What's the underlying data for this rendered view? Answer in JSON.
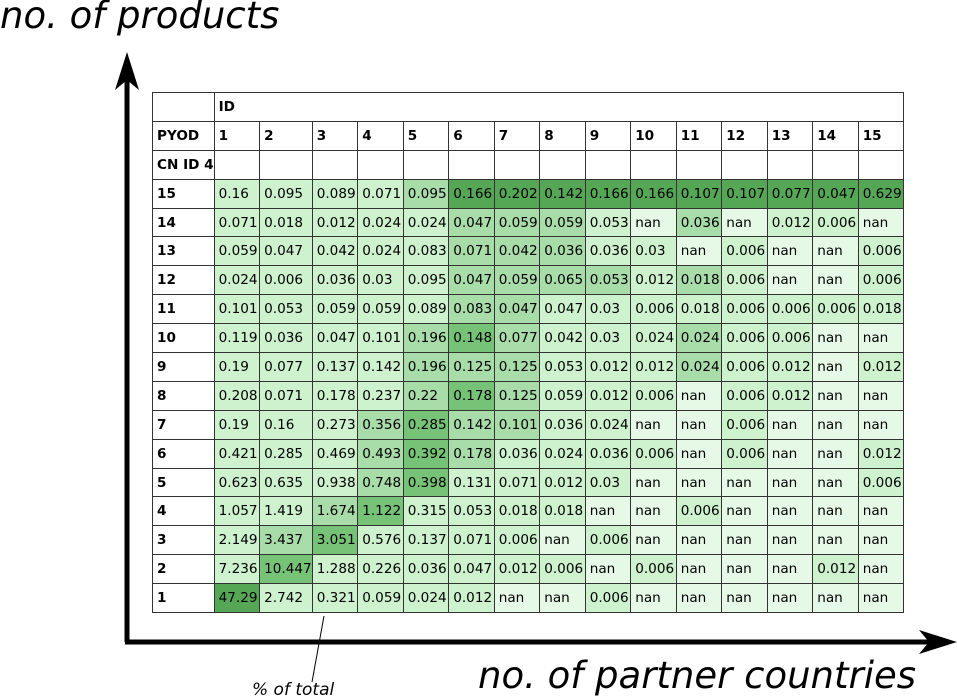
{
  "chart_data": {
    "type": "heatmap",
    "ylabel": "no. of products",
    "xlabel": "no. of partner countries",
    "annotation": "% of total",
    "header": {
      "row1_label": "ID",
      "row2_label": "PYOD",
      "row3_label": "CN ID 4"
    },
    "columns": [
      "1",
      "2",
      "3",
      "4",
      "5",
      "6",
      "7",
      "8",
      "9",
      "10",
      "11",
      "12",
      "13",
      "14",
      "15"
    ],
    "rows": [
      {
        "label": "15",
        "values": [
          "0.16",
          "0.095",
          "0.089",
          "0.071",
          "0.095",
          "0.166",
          "0.202",
          "0.142",
          "0.166",
          "0.166",
          "0.107",
          "0.107",
          "0.077",
          "0.047",
          "0.629"
        ]
      },
      {
        "label": "14",
        "values": [
          "0.071",
          "0.018",
          "0.012",
          "0.024",
          "0.024",
          "0.047",
          "0.059",
          "0.059",
          "0.053",
          "nan",
          "0.036",
          "nan",
          "0.012",
          "0.006",
          "nan"
        ]
      },
      {
        "label": "13",
        "values": [
          "0.059",
          "0.047",
          "0.042",
          "0.024",
          "0.083",
          "0.071",
          "0.042",
          "0.036",
          "0.036",
          "0.03",
          "nan",
          "0.006",
          "nan",
          "nan",
          "0.006"
        ]
      },
      {
        "label": "12",
        "values": [
          "0.024",
          "0.006",
          "0.036",
          "0.03",
          "0.095",
          "0.047",
          "0.059",
          "0.065",
          "0.053",
          "0.012",
          "0.018",
          "0.006",
          "nan",
          "nan",
          "0.006"
        ]
      },
      {
        "label": "11",
        "values": [
          "0.101",
          "0.053",
          "0.059",
          "0.059",
          "0.089",
          "0.083",
          "0.047",
          "0.047",
          "0.03",
          "0.006",
          "0.018",
          "0.006",
          "0.006",
          "0.006",
          "0.018"
        ]
      },
      {
        "label": "10",
        "values": [
          "0.119",
          "0.036",
          "0.047",
          "0.101",
          "0.196",
          "0.148",
          "0.077",
          "0.042",
          "0.03",
          "0.024",
          "0.024",
          "0.006",
          "0.006",
          "nan",
          "nan"
        ]
      },
      {
        "label": "9",
        "values": [
          "0.19",
          "0.077",
          "0.137",
          "0.142",
          "0.196",
          "0.125",
          "0.125",
          "0.053",
          "0.012",
          "0.012",
          "0.024",
          "0.006",
          "0.012",
          "nan",
          "0.012"
        ]
      },
      {
        "label": "8",
        "values": [
          "0.208",
          "0.071",
          "0.178",
          "0.237",
          "0.22",
          "0.178",
          "0.125",
          "0.059",
          "0.012",
          "0.006",
          "nan",
          "0.006",
          "0.012",
          "nan",
          "nan"
        ]
      },
      {
        "label": "7",
        "values": [
          "0.19",
          "0.16",
          "0.273",
          "0.356",
          "0.285",
          "0.142",
          "0.101",
          "0.036",
          "0.024",
          "nan",
          "nan",
          "0.006",
          "nan",
          "nan",
          "nan"
        ]
      },
      {
        "label": "6",
        "values": [
          "0.421",
          "0.285",
          "0.469",
          "0.493",
          "0.392",
          "0.178",
          "0.036",
          "0.024",
          "0.036",
          "0.006",
          "nan",
          "0.006",
          "nan",
          "nan",
          "0.012"
        ]
      },
      {
        "label": "5",
        "values": [
          "0.623",
          "0.635",
          "0.938",
          "0.748",
          "0.398",
          "0.131",
          "0.071",
          "0.012",
          "0.03",
          "nan",
          "nan",
          "nan",
          "nan",
          "nan",
          "0.006"
        ]
      },
      {
        "label": "4",
        "values": [
          "1.057",
          "1.419",
          "1.674",
          "1.122",
          "0.315",
          "0.053",
          "0.018",
          "0.018",
          "nan",
          "nan",
          "0.006",
          "nan",
          "nan",
          "nan",
          "nan"
        ]
      },
      {
        "label": "3",
        "values": [
          "2.149",
          "3.437",
          "3.051",
          "0.576",
          "0.137",
          "0.071",
          "0.006",
          "nan",
          "0.006",
          "nan",
          "nan",
          "nan",
          "nan",
          "nan",
          "nan"
        ]
      },
      {
        "label": "2",
        "values": [
          "7.236",
          "10.447",
          "1.288",
          "0.226",
          "0.036",
          "0.047",
          "0.012",
          "0.006",
          "nan",
          "0.006",
          "nan",
          "nan",
          "nan",
          "0.012",
          "nan"
        ]
      },
      {
        "label": "1",
        "values": [
          "47.29",
          "2.742",
          "0.321",
          "0.059",
          "0.024",
          "0.012",
          "nan",
          "nan",
          "0.006",
          "nan",
          "nan",
          "nan",
          "nan",
          "nan",
          "nan"
        ]
      }
    ],
    "shading": [
      [
        1,
        1,
        1,
        1,
        2,
        4,
        4,
        4,
        4,
        4,
        4,
        4,
        4,
        4,
        4
      ],
      [
        1,
        1,
        1,
        1,
        1,
        2,
        2,
        2,
        1,
        0,
        2,
        0,
        1,
        1,
        0
      ],
      [
        1,
        1,
        1,
        1,
        1,
        2,
        2,
        2,
        1,
        1,
        0,
        1,
        0,
        0,
        1
      ],
      [
        1,
        1,
        1,
        1,
        1,
        2,
        2,
        2,
        2,
        1,
        2,
        1,
        0,
        0,
        1
      ],
      [
        1,
        1,
        1,
        1,
        1,
        2,
        2,
        1,
        1,
        1,
        1,
        1,
        1,
        1,
        1
      ],
      [
        1,
        1,
        1,
        1,
        2,
        3,
        2,
        1,
        1,
        1,
        2,
        1,
        1,
        0,
        0
      ],
      [
        1,
        1,
        1,
        1,
        2,
        2,
        2,
        1,
        1,
        1,
        2,
        1,
        1,
        0,
        1
      ],
      [
        1,
        1,
        1,
        1,
        2,
        3,
        2,
        1,
        1,
        1,
        0,
        1,
        1,
        0,
        0
      ],
      [
        1,
        1,
        1,
        2,
        3,
        2,
        2,
        1,
        1,
        0,
        0,
        1,
        0,
        0,
        0
      ],
      [
        1,
        1,
        1,
        2,
        3,
        2,
        1,
        1,
        1,
        1,
        0,
        1,
        0,
        0,
        1
      ],
      [
        1,
        1,
        1,
        2,
        3,
        1,
        1,
        1,
        1,
        0,
        0,
        0,
        0,
        0,
        1
      ],
      [
        1,
        1,
        2,
        3,
        1,
        1,
        1,
        1,
        0,
        0,
        1,
        0,
        0,
        0,
        0
      ],
      [
        1,
        2,
        3,
        1,
        1,
        1,
        1,
        0,
        1,
        0,
        0,
        0,
        0,
        0,
        0
      ],
      [
        1,
        3,
        1,
        1,
        1,
        1,
        1,
        1,
        0,
        1,
        0,
        0,
        0,
        1,
        0
      ],
      [
        4,
        1,
        1,
        1,
        1,
        1,
        0,
        0,
        1,
        0,
        0,
        0,
        0,
        0,
        0
      ]
    ],
    "palette": [
      "#e6f9e6",
      "#cdf2cd",
      "#a8dca8",
      "#76c276",
      "#55a655"
    ]
  }
}
